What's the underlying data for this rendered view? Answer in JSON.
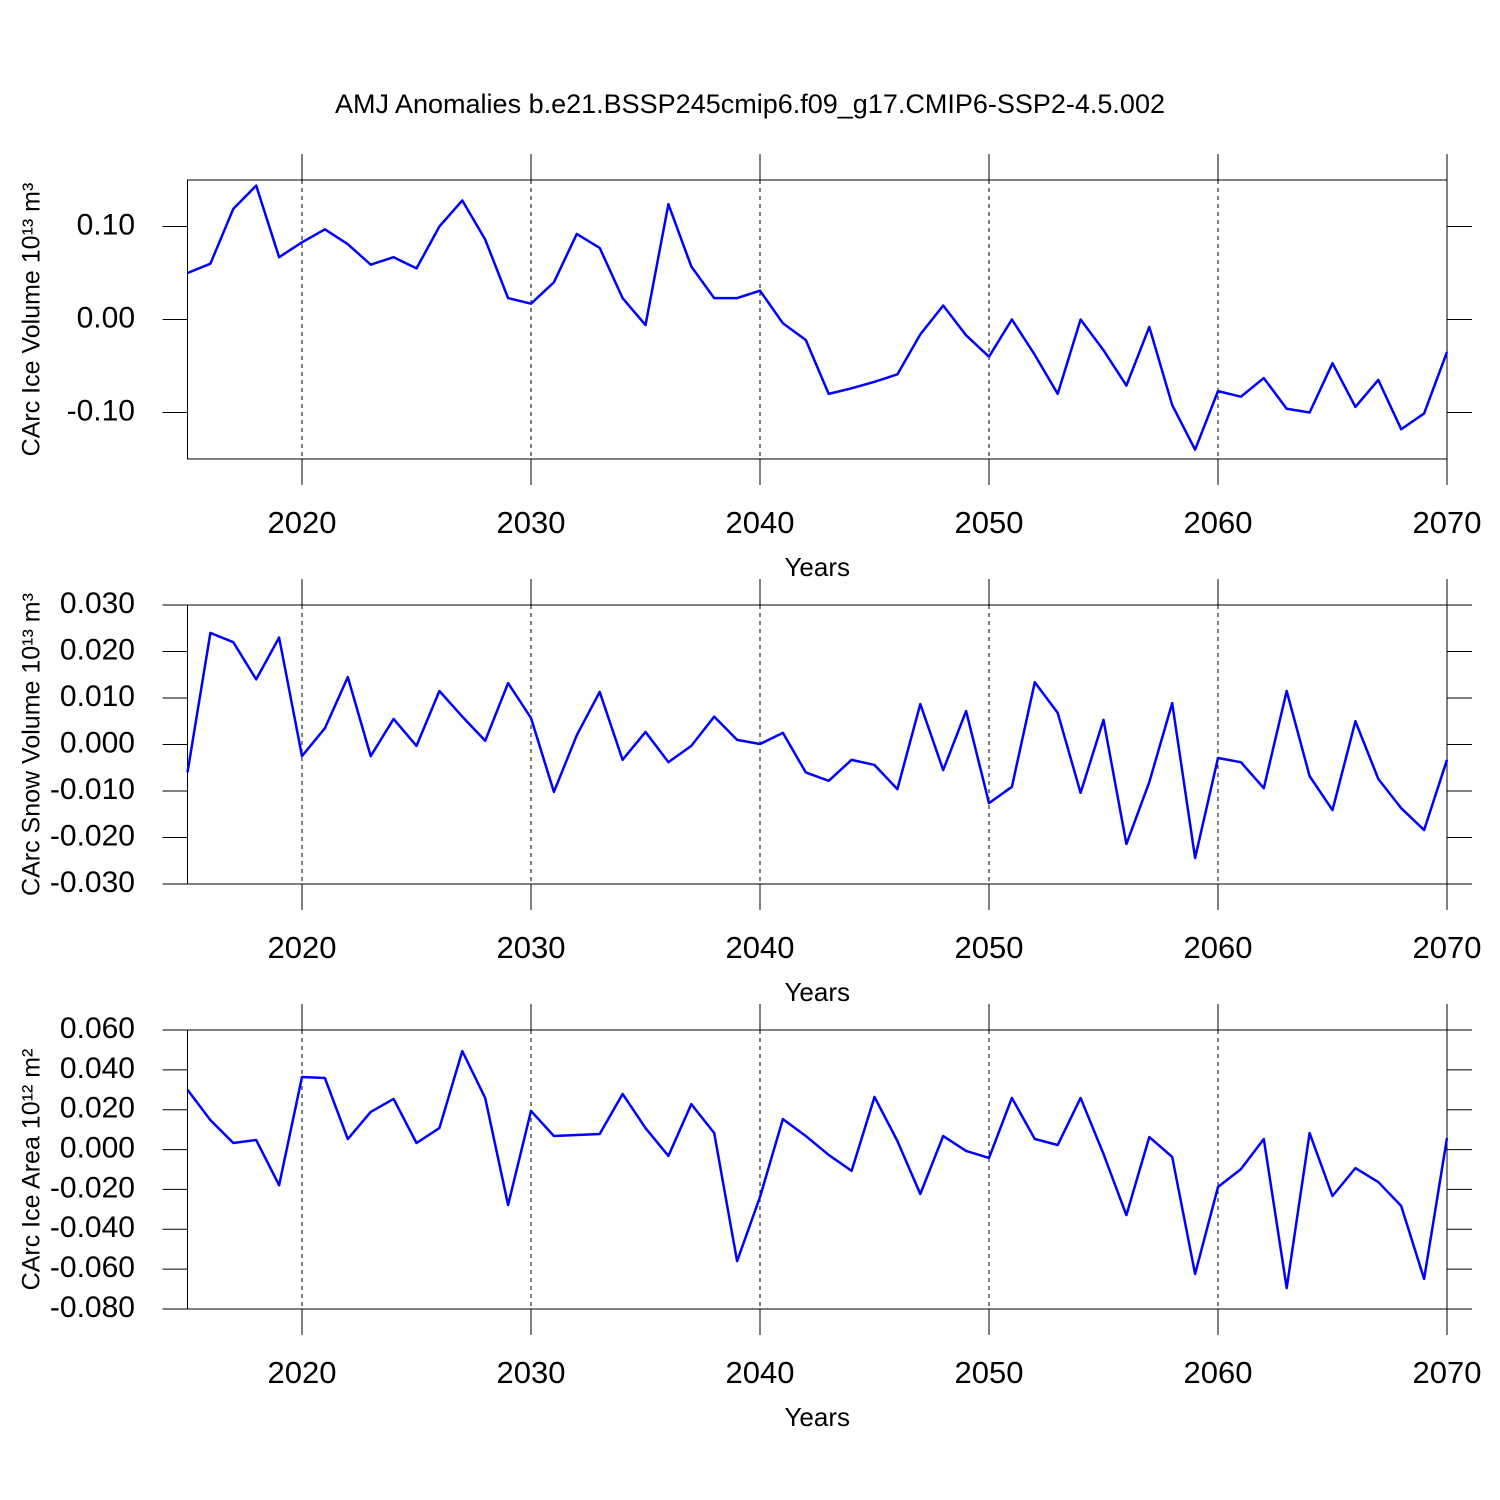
{
  "chart_data": [
    {
      "type": "line",
      "title": "AMJ Anomalies b.e21.BSSP245cmip6.f09_g17.CMIP6-SSP2-4.5.002",
      "ylabel": "CArc Ice Volume 10¹³ m³",
      "xlabel": "Years",
      "color": "#0000ff",
      "xgrid": true,
      "x": [
        2015,
        2016,
        2017,
        2018,
        2019,
        2020,
        2021,
        2022,
        2023,
        2024,
        2025,
        2026,
        2027,
        2028,
        2029,
        2030,
        2031,
        2032,
        2033,
        2034,
        2035,
        2036,
        2037,
        2038,
        2039,
        2040,
        2041,
        2042,
        2043,
        2044,
        2045,
        2046,
        2047,
        2048,
        2049,
        2050,
        2051,
        2052,
        2053,
        2054,
        2055,
        2056,
        2057,
        2058,
        2059,
        2060,
        2061,
        2062,
        2063,
        2064,
        2065,
        2066,
        2067,
        2068,
        2069,
        2070
      ],
      "values": [
        0.05,
        0.06,
        0.119,
        0.144,
        0.067,
        0.083,
        0.097,
        0.081,
        0.059,
        0.067,
        0.055,
        0.1,
        0.128,
        0.086,
        0.023,
        0.017,
        0.04,
        0.092,
        0.077,
        0.023,
        -0.006,
        0.124,
        0.057,
        0.023,
        0.023,
        0.031,
        -0.004,
        -0.022,
        -0.08,
        -0.074,
        -0.067,
        -0.059,
        -0.016,
        0.015,
        -0.017,
        -0.04,
        0.0,
        -0.038,
        -0.08,
        0.0,
        -0.033,
        -0.071,
        -0.008,
        -0.092,
        -0.14,
        -0.077,
        -0.083,
        -0.063,
        -0.096,
        -0.1,
        -0.047,
        -0.094,
        -0.065,
        -0.118,
        -0.101,
        -0.035
      ],
      "xlim": [
        2015,
        2070
      ],
      "xticks": [
        2020,
        2030,
        2040,
        2050,
        2060,
        2070
      ],
      "ylim": [
        -0.15,
        0.15
      ],
      "yticks": [
        {
          "value": -0.1,
          "label": "-0.10"
        },
        {
          "value": 0,
          "label": "0.00"
        },
        {
          "value": 0.1,
          "label": "0.10"
        }
      ]
    },
    {
      "type": "line",
      "ylabel": "CArc Snow Volume 10¹³ m³",
      "xlabel": "Years",
      "color": "#0000ff",
      "xgrid": true,
      "x": [
        2015,
        2016,
        2017,
        2018,
        2019,
        2020,
        2021,
        2022,
        2023,
        2024,
        2025,
        2026,
        2027,
        2028,
        2029,
        2030,
        2031,
        2032,
        2033,
        2034,
        2035,
        2036,
        2037,
        2038,
        2039,
        2040,
        2041,
        2042,
        2043,
        2044,
        2045,
        2046,
        2047,
        2048,
        2049,
        2050,
        2051,
        2052,
        2053,
        2054,
        2055,
        2056,
        2057,
        2058,
        2059,
        2060,
        2061,
        2062,
        2063,
        2064,
        2065,
        2066,
        2067,
        2068,
        2069,
        2070
      ],
      "values": [
        -0.006,
        0.024,
        0.022,
        0.014,
        0.023,
        -0.0025,
        0.0035,
        0.0145,
        -0.0025,
        0.0055,
        -0.0003,
        0.0115,
        0.006,
        0.0008,
        0.0132,
        0.0057,
        -0.0102,
        0.002,
        0.0113,
        -0.0033,
        0.0027,
        -0.0038,
        -0.0003,
        0.006,
        0.001,
        0.0001,
        0.0025,
        -0.006,
        -0.0078,
        -0.0033,
        -0.0044,
        -0.0096,
        0.0087,
        -0.0055,
        0.0072,
        -0.0126,
        -0.0091,
        0.0134,
        0.0068,
        -0.0104,
        0.0053,
        -0.0214,
        -0.0081,
        0.0089,
        -0.0244,
        -0.0029,
        -0.0038,
        -0.0094,
        0.0115,
        -0.0068,
        -0.0141,
        0.005,
        -0.0074,
        -0.0137,
        -0.0184,
        -0.0033
      ],
      "xlim": [
        2015,
        2070
      ],
      "xticks": [
        2020,
        2030,
        2040,
        2050,
        2060,
        2070
      ],
      "ylim": [
        -0.03,
        0.03
      ],
      "yticks": [
        {
          "value": -0.03,
          "label": "-0.030"
        },
        {
          "value": -0.02,
          "label": "-0.020"
        },
        {
          "value": -0.01,
          "label": "-0.010"
        },
        {
          "value": 0,
          "label": "0.000"
        },
        {
          "value": 0.01,
          "label": "0.010"
        },
        {
          "value": 0.02,
          "label": "0.020"
        },
        {
          "value": 0.03,
          "label": "0.030"
        }
      ]
    },
    {
      "type": "line",
      "ylabel": "CArc Ice Area 10¹² m²",
      "xlabel": "Years",
      "color": "#0000ff",
      "xgrid": true,
      "x": [
        2015,
        2016,
        2017,
        2018,
        2019,
        2020,
        2021,
        2022,
        2023,
        2024,
        2025,
        2026,
        2027,
        2028,
        2029,
        2030,
        2031,
        2032,
        2033,
        2034,
        2035,
        2036,
        2037,
        2038,
        2039,
        2040,
        2041,
        2042,
        2043,
        2044,
        2045,
        2046,
        2047,
        2048,
        2049,
        2050,
        2051,
        2052,
        2053,
        2054,
        2055,
        2056,
        2057,
        2058,
        2059,
        2060,
        2061,
        2062,
        2063,
        2064,
        2065,
        2066,
        2067,
        2068,
        2069,
        2070
      ],
      "values": [
        0.03,
        0.0148,
        0.0033,
        0.0048,
        -0.0179,
        0.0364,
        0.0359,
        0.0053,
        0.0189,
        0.0254,
        0.0033,
        0.0108,
        0.0494,
        0.0259,
        -0.0278,
        0.0194,
        0.0068,
        0.0073,
        0.0078,
        0.0279,
        0.0108,
        -0.0032,
        0.0228,
        0.0083,
        -0.056,
        -0.0238,
        0.0153,
        0.0068,
        -0.0027,
        -0.0107,
        0.0264,
        0.0043,
        -0.0223,
        0.0068,
        -0.0007,
        -0.0042,
        0.0259,
        0.0053,
        0.0023,
        0.0259,
        -0.0022,
        -0.0329,
        0.0063,
        -0.0037,
        -0.0624,
        -0.0188,
        -0.0098,
        0.0053,
        -0.0695,
        0.0083,
        -0.0233,
        -0.0093,
        -0.0163,
        -0.0283,
        -0.0649,
        0.0058
      ],
      "xlim": [
        2015,
        2070
      ],
      "xticks": [
        2020,
        2030,
        2040,
        2050,
        2060,
        2070
      ],
      "ylim": [
        -0.08,
        0.06
      ],
      "yticks": [
        {
          "value": -0.08,
          "label": "-0.080"
        },
        {
          "value": -0.06,
          "label": "-0.060"
        },
        {
          "value": -0.04,
          "label": "-0.040"
        },
        {
          "value": -0.02,
          "label": "-0.020"
        },
        {
          "value": 0,
          "label": "0.000"
        },
        {
          "value": 0.02,
          "label": "0.020"
        },
        {
          "value": 0.04,
          "label": "0.040"
        },
        {
          "value": 0.06,
          "label": "0.060"
        }
      ]
    }
  ]
}
